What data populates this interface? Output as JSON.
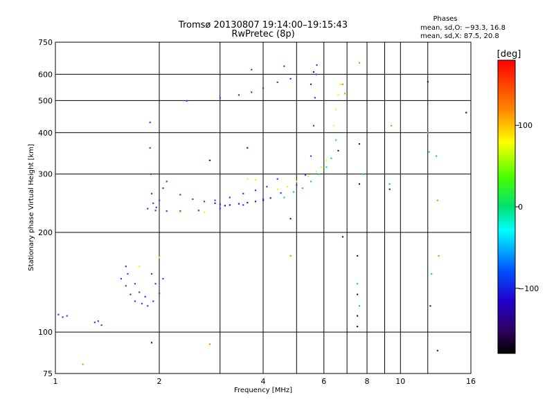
{
  "chart_data": {
    "type": "scatter",
    "title": "Tromsø 20130807 19:14:00–19:15:43",
    "subtitle": "RwPretec (8p)",
    "xlabel": "Frequency [MHz]",
    "ylabel": "Stationary phase Virtual Height [km]",
    "x_scale": "log",
    "y_scale": "log",
    "xlim": [
      1,
      16
    ],
    "ylim": [
      75,
      750
    ],
    "x_ticks": [
      1,
      2,
      4,
      6,
      8,
      10,
      16
    ],
    "y_ticks": [
      75,
      100,
      200,
      300,
      400,
      500,
      600,
      750
    ],
    "x_minor_ticks": [
      3,
      5,
      7,
      9,
      12
    ],
    "grid": true,
    "phase_box": {
      "title": "Phases",
      "line_o": "mean, sd,O: −93.3, 16.8",
      "line_x": "mean, sd,X:  87.5, 20.8"
    },
    "colorbar": {
      "label": "[deg]",
      "ticks": [
        "100",
        "0",
        "−100"
      ],
      "tick_values": [
        100,
        0,
        -100
      ],
      "range": [
        -180,
        180
      ]
    },
    "traces": [
      {
        "name": "",
        "color": "#1a46ff",
        "points": [
          [
            1.02,
            113
          ],
          [
            1.05,
            111
          ],
          [
            1.08,
            112
          ],
          [
            1.3,
            107
          ],
          [
            1.33,
            108
          ],
          [
            1.36,
            105
          ],
          [
            1.55,
            145
          ],
          [
            1.6,
            138
          ],
          [
            1.65,
            130
          ],
          [
            1.7,
            124
          ],
          [
            1.78,
            122
          ],
          [
            1.85,
            120
          ],
          [
            1.92,
            124
          ],
          [
            2.0,
            131
          ],
          [
            2.05,
            145
          ],
          [
            1.6,
            158
          ],
          [
            1.62,
            150
          ],
          [
            1.7,
            140
          ],
          [
            1.75,
            132
          ],
          [
            1.82,
            128
          ],
          [
            1.9,
            150
          ],
          [
            1.95,
            140
          ],
          [
            1.88,
            430
          ],
          [
            1.88,
            360
          ],
          [
            1.89,
            300
          ],
          [
            1.9,
            262
          ],
          [
            1.92,
            245
          ],
          [
            1.96,
            238
          ],
          [
            2.0,
            250
          ],
          [
            2.05,
            272
          ],
          [
            2.1,
            285
          ],
          [
            1.85,
            236
          ],
          [
            1.95,
            233
          ],
          [
            2.1,
            232
          ],
          [
            2.3,
            232
          ],
          [
            2.6,
            233
          ],
          [
            3.0,
            236
          ],
          [
            3.5,
            242
          ],
          [
            4.0,
            252
          ],
          [
            4.5,
            263
          ],
          [
            5.0,
            278
          ],
          [
            5.3,
            298
          ],
          [
            5.5,
            340
          ],
          [
            5.6,
            420
          ],
          [
            5.65,
            510
          ],
          [
            5.7,
            600
          ],
          [
            5.72,
            640
          ],
          [
            2.3,
            260
          ],
          [
            2.5,
            252
          ],
          [
            2.7,
            248
          ],
          [
            2.9,
            250
          ],
          [
            3.2,
            255
          ],
          [
            3.5,
            262
          ],
          [
            3.8,
            268
          ],
          [
            4.1,
            275
          ],
          [
            4.4,
            290
          ],
          [
            2.4,
            499
          ],
          [
            3.0,
            510
          ],
          [
            3.4,
            520
          ],
          [
            3.7,
            530
          ],
          [
            4.0,
            545
          ],
          [
            4.4,
            568
          ],
          [
            4.8,
            582
          ],
          [
            3.7,
            620
          ],
          [
            4.6,
            635
          ]
        ]
      },
      {
        "name": "",
        "color": "#5a00c8",
        "points": [
          [
            2.9,
            245
          ],
          [
            3.0,
            243
          ],
          [
            3.1,
            241
          ],
          [
            3.2,
            242
          ],
          [
            3.4,
            244
          ],
          [
            3.6,
            246
          ],
          [
            3.8,
            248
          ],
          [
            4.0,
            250
          ],
          [
            4.2,
            254
          ],
          [
            5.5,
            560
          ],
          [
            5.6,
            610
          ]
        ]
      },
      {
        "name": "",
        "color": "#e6ff00",
        "points": [
          [
            3.6,
            290
          ],
          [
            3.8,
            288
          ],
          [
            4.4,
            270
          ],
          [
            4.7,
            275
          ],
          [
            5.0,
            285
          ],
          [
            5.4,
            295
          ],
          [
            5.7,
            305
          ],
          [
            5.9,
            315
          ],
          [
            6.1,
            330
          ],
          [
            6.4,
            420
          ],
          [
            6.5,
            470
          ],
          [
            6.6,
            520
          ],
          [
            6.7,
            560
          ],
          [
            1.75,
            158
          ],
          [
            2.0,
            168
          ],
          [
            2.3,
            230
          ],
          [
            2.7,
            230
          ]
        ]
      },
      {
        "name": "",
        "color": "#ff8c00",
        "points": [
          [
            6.8,
            560
          ],
          [
            6.9,
            525
          ],
          [
            7.6,
            650
          ],
          [
            9.4,
            420
          ],
          [
            12.8,
            250
          ],
          [
            12.9,
            170
          ],
          [
            4.8,
            170
          ],
          [
            2.8,
            92
          ],
          [
            1.2,
            80
          ]
        ]
      },
      {
        "name": "",
        "color": "#00dca0",
        "points": [
          [
            4.6,
            255
          ],
          [
            4.9,
            265
          ],
          [
            5.2,
            272
          ],
          [
            5.5,
            285
          ],
          [
            5.8,
            300
          ],
          [
            6.1,
            315
          ],
          [
            6.3,
            335
          ],
          [
            6.5,
            380
          ]
        ]
      },
      {
        "name": "",
        "color": "#1e1e78",
        "points": [
          [
            7.5,
            170
          ],
          [
            7.5,
            130
          ],
          [
            7.5,
            112
          ],
          [
            7.5,
            104
          ],
          [
            7.6,
            280
          ],
          [
            7.6,
            370
          ],
          [
            9.3,
            270
          ],
          [
            12.0,
            570
          ],
          [
            12.2,
            120
          ],
          [
            12.8,
            88
          ],
          [
            15.5,
            460
          ],
          [
            6.6,
            353
          ],
          [
            6.8,
            194
          ],
          [
            4.8,
            220
          ],
          [
            3.6,
            360
          ],
          [
            2.8,
            330
          ],
          [
            1.9,
            93
          ]
        ]
      },
      {
        "name": "",
        "color": "#00c8ff",
        "points": [
          [
            7.5,
            140
          ],
          [
            7.6,
            120
          ],
          [
            7.8,
            300
          ],
          [
            12.0,
            400
          ],
          [
            12.1,
            350
          ],
          [
            12.3,
            150
          ],
          [
            12.7,
            340
          ],
          [
            9.3,
            280
          ]
        ]
      }
    ]
  }
}
